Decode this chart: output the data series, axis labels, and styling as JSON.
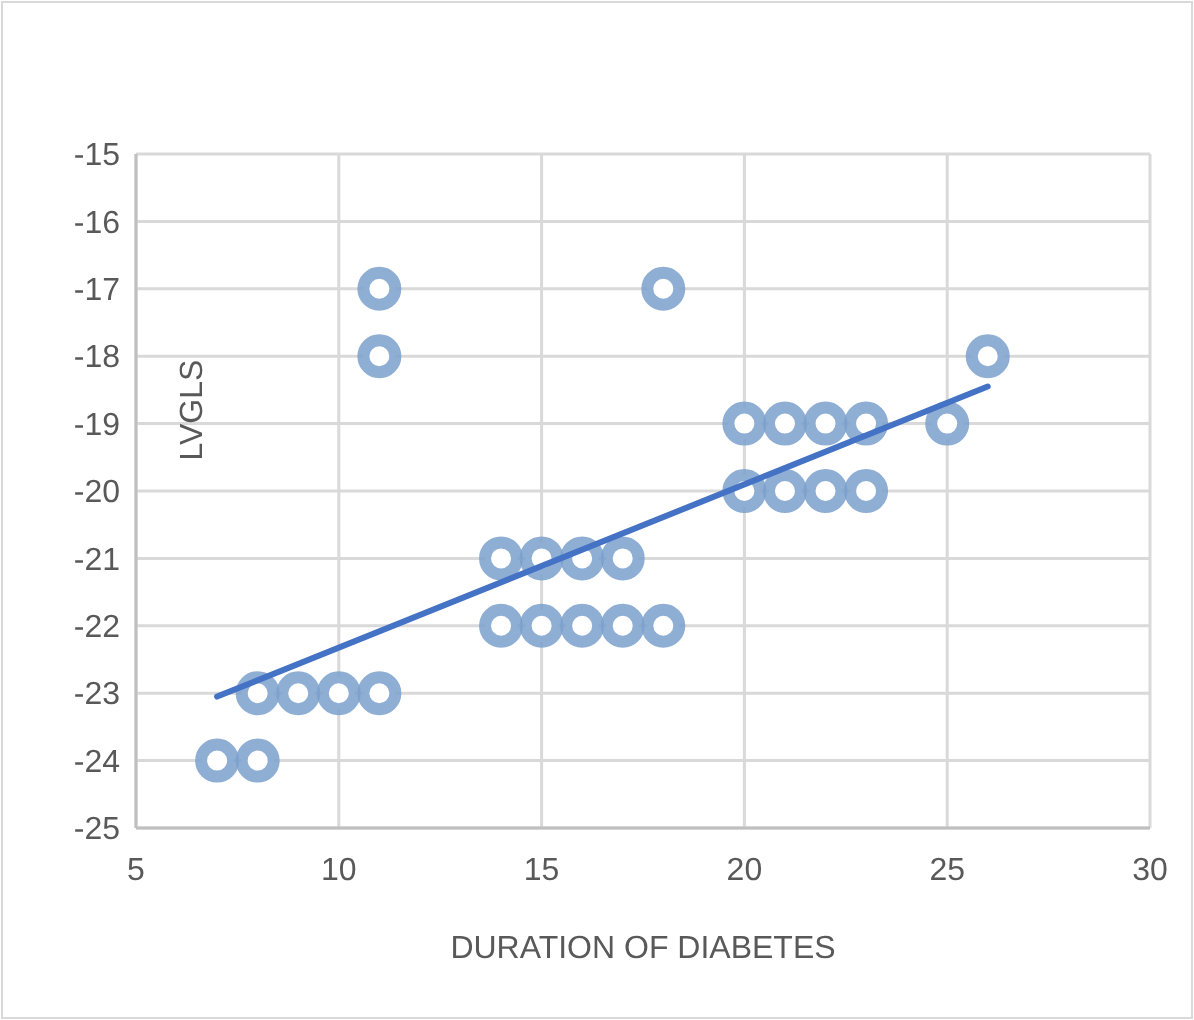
{
  "chart_data": {
    "type": "scatter",
    "xlabel": "DURATION OF DIABETES",
    "ylabel": "LVGLS",
    "xlim": [
      5,
      30
    ],
    "ylim": [
      -25,
      -15
    ],
    "xticks": [
      5,
      10,
      15,
      20,
      25,
      30
    ],
    "yticks": [
      -25,
      -24,
      -23,
      -22,
      -21,
      -20,
      -19,
      -18,
      -17,
      -16,
      -15
    ],
    "grid": true,
    "series": [
      {
        "marker": "circle",
        "color": "#7ba0cc",
        "x": [
          7,
          8,
          8,
          9,
          10,
          11,
          11,
          11,
          14,
          14,
          15,
          15,
          16,
          16,
          17,
          17,
          18,
          18,
          20,
          20,
          21,
          21,
          22,
          22,
          23,
          23,
          25,
          26
        ],
        "values": [
          -24,
          -24,
          -23,
          -23,
          -23,
          -23,
          -17,
          -18,
          -21,
          -22,
          -21,
          -22,
          -21,
          -22,
          -21,
          -22,
          -22,
          -17,
          -19,
          -20,
          -19,
          -20,
          -19,
          -20,
          -19,
          -20,
          -19,
          -18
        ]
      },
      {
        "type": "line",
        "color": "#4472c4",
        "x": [
          7,
          26
        ],
        "values": [
          -23.05,
          -18.45
        ]
      }
    ]
  }
}
